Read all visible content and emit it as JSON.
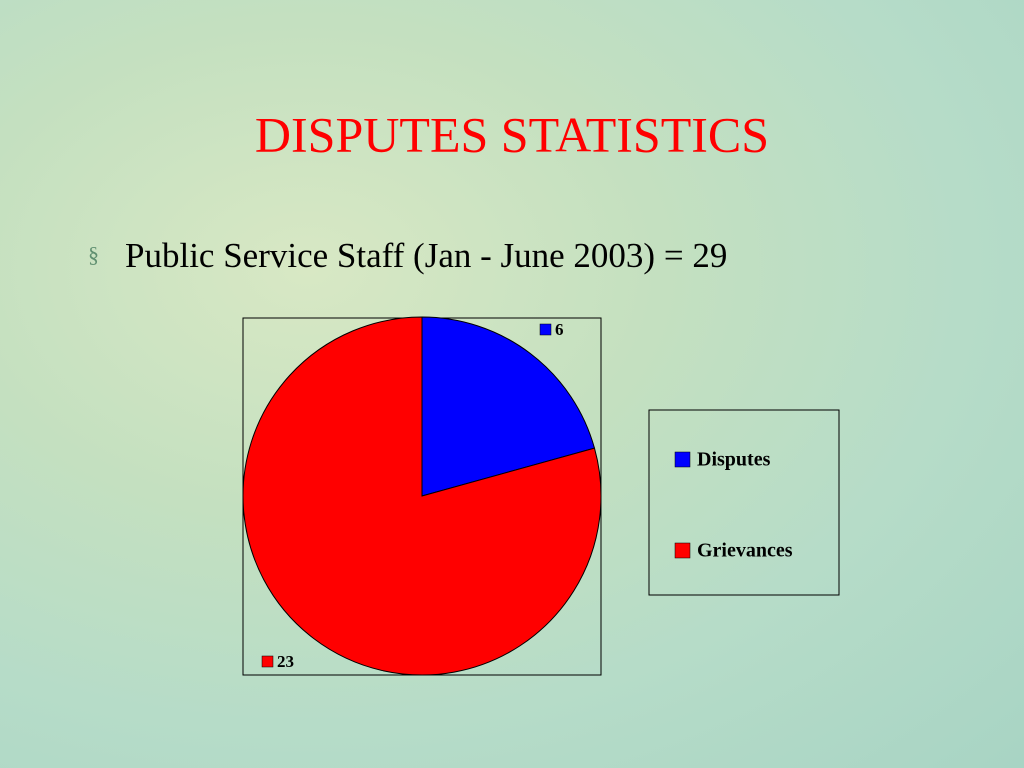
{
  "chart_data": {
    "type": "pie",
    "title": "DISPUTES STATISTICS",
    "subtitle": "Public Service Staff (Jan - June 2003) = 29",
    "categories": [
      "Disputes",
      "Grievances"
    ],
    "values": [
      6,
      23
    ],
    "colors": [
      "#0000ff",
      "#ff0000"
    ],
    "legend": "right"
  }
}
